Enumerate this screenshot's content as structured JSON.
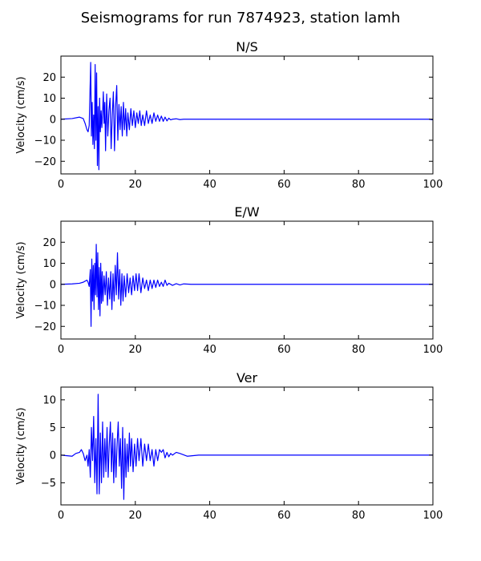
{
  "figure": {
    "title": "Seismograms for run 7874923, station lamh"
  },
  "chart_data": [
    {
      "type": "line",
      "title": "N/S",
      "xlabel": "",
      "ylabel": "Velocity (cm/s)",
      "xlim": [
        0,
        100
      ],
      "ylim": [
        -26,
        30
      ],
      "xticks": [
        0,
        20,
        40,
        60,
        80,
        100
      ],
      "yticks": [
        -20,
        -10,
        0,
        10,
        20
      ],
      "color": "#0000ff",
      "grid": false,
      "x": [
        0,
        3,
        5,
        6,
        6.5,
        7,
        7.3,
        7.6,
        8,
        8.2,
        8.4,
        8.6,
        8.8,
        9.0,
        9.2,
        9.4,
        9.6,
        9.8,
        10.0,
        10.2,
        10.4,
        10.6,
        10.8,
        11.0,
        11.2,
        11.4,
        11.6,
        11.8,
        12.0,
        12.3,
        12.6,
        12.9,
        13.2,
        13.5,
        13.8,
        14.1,
        14.4,
        14.7,
        15.0,
        15.3,
        15.6,
        15.9,
        16.2,
        16.5,
        16.8,
        17.1,
        17.4,
        17.7,
        18.0,
        18.4,
        18.8,
        19.2,
        19.6,
        20.0,
        20.4,
        20.8,
        21.2,
        21.6,
        22.0,
        22.5,
        23.0,
        23.5,
        24.0,
        24.5,
        25.0,
        25.5,
        26.0,
        26.5,
        27.0,
        27.5,
        28.0,
        28.5,
        29.0,
        29.5,
        30.0,
        31,
        32,
        33,
        35,
        38,
        40,
        50,
        60,
        70,
        80,
        90,
        99,
        100
      ],
      "y": [
        0,
        0.3,
        1,
        0.3,
        -2,
        -5,
        -6,
        -3,
        27,
        -8,
        8,
        -12,
        2,
        -14,
        26,
        -10,
        22,
        -22,
        6,
        -24,
        10,
        -6,
        4,
        -4,
        3,
        13,
        -2,
        8,
        -15,
        12,
        -8,
        4,
        10,
        -14,
        2,
        13,
        -15,
        6,
        16,
        -10,
        7,
        -5,
        6,
        -8,
        8,
        -5,
        5,
        -8,
        3,
        -5,
        5,
        -3,
        4,
        -4,
        3,
        -2,
        4,
        -3,
        2,
        -3,
        4,
        -2,
        2,
        -2,
        3,
        -1,
        2,
        -1,
        1.5,
        -1,
        1,
        -0.8,
        0.5,
        -0.3,
        0,
        0.2,
        -0.2,
        0,
        0,
        0,
        0,
        0,
        0,
        0,
        0,
        0,
        0,
        -0.3
      ]
    },
    {
      "type": "line",
      "title": "E/W",
      "xlabel": "",
      "ylabel": "Velocity (cm/s)",
      "xlim": [
        0,
        100
      ],
      "ylim": [
        -26,
        30
      ],
      "xticks": [
        0,
        20,
        40,
        60,
        80,
        100
      ],
      "yticks": [
        -20,
        -10,
        0,
        10,
        20
      ],
      "color": "#0000ff",
      "grid": false,
      "x": [
        0,
        3,
        5,
        6,
        6.5,
        7,
        7.3,
        7.6,
        7.9,
        8.1,
        8.3,
        8.5,
        8.7,
        8.9,
        9.1,
        9.3,
        9.5,
        9.7,
        9.9,
        10.1,
        10.3,
        10.5,
        10.7,
        10.9,
        11.1,
        11.3,
        11.6,
        11.9,
        12.2,
        12.5,
        12.8,
        13.1,
        13.4,
        13.7,
        14.0,
        14.3,
        14.6,
        14.9,
        15.2,
        15.5,
        15.8,
        16.1,
        16.4,
        16.7,
        17.0,
        17.4,
        17.8,
        18.2,
        18.6,
        19.0,
        19.4,
        19.8,
        20.2,
        20.6,
        21.0,
        21.5,
        22.0,
        22.5,
        23.0,
        23.5,
        24.0,
        24.5,
        25.0,
        25.5,
        26.0,
        26.5,
        27.0,
        27.5,
        28.0,
        28.5,
        29.0,
        30.0,
        31,
        32,
        33,
        35,
        40,
        50,
        60,
        70,
        80,
        90,
        100
      ],
      "y": [
        0,
        0.2,
        0.5,
        1,
        1.5,
        2,
        1,
        -1,
        7,
        -20,
        12,
        -8,
        9,
        -12,
        10,
        -5,
        19,
        -6,
        15,
        -12,
        8,
        -15,
        10,
        -9,
        6,
        -8,
        4,
        -5,
        6,
        -10,
        3,
        -7,
        6,
        -12,
        5,
        -8,
        9,
        -5,
        15,
        -7,
        7,
        -10,
        5,
        -8,
        4,
        -6,
        5,
        -4,
        3,
        -5,
        4,
        -3,
        5,
        -3,
        5,
        -4,
        3,
        -2,
        2,
        -3,
        2,
        -2,
        2,
        -1.5,
        2,
        -1,
        1,
        -1,
        2,
        -0.5,
        0.5,
        -0.5,
        0.3,
        -0.3,
        0.2,
        0,
        0,
        0,
        0,
        0,
        0,
        0,
        0
      ]
    },
    {
      "type": "line",
      "title": "Ver",
      "xlabel": "",
      "ylabel": "Velocity (cm/s)",
      "xlim": [
        0,
        100
      ],
      "ylim": [
        -9,
        12.3
      ],
      "xticks": [
        0,
        20,
        40,
        60,
        80,
        100
      ],
      "yticks": [
        -5,
        0,
        5,
        10
      ],
      "color": "#0000ff",
      "grid": false,
      "x": [
        0,
        3,
        4,
        5,
        5.5,
        6,
        6.5,
        7,
        7.3,
        7.6,
        7.9,
        8.2,
        8.5,
        8.8,
        9.1,
        9.4,
        9.7,
        10.0,
        10.3,
        10.6,
        10.9,
        11.2,
        11.5,
        11.8,
        12.1,
        12.4,
        12.7,
        13.0,
        13.3,
        13.6,
        13.9,
        14.2,
        14.5,
        14.8,
        15.1,
        15.4,
        15.7,
        16.0,
        16.3,
        16.6,
        16.9,
        17.2,
        17.5,
        17.8,
        18.1,
        18.4,
        18.7,
        19.0,
        19.4,
        19.8,
        20.2,
        20.6,
        21.0,
        21.5,
        22.0,
        22.5,
        23.0,
        23.5,
        24.0,
        24.5,
        25.0,
        25.5,
        26.0,
        26.5,
        27.0,
        27.5,
        28.0,
        28.5,
        29.0,
        29.5,
        30.0,
        31,
        32,
        34,
        37,
        40,
        50,
        60,
        70,
        80,
        90,
        100
      ],
      "y": [
        0,
        -0.2,
        0.3,
        0.5,
        1,
        0.3,
        -1,
        0,
        -2,
        1,
        -4,
        5,
        -1,
        7,
        -5,
        3,
        -7,
        11,
        -7,
        4,
        -5,
        6,
        -4,
        3,
        -3,
        5,
        -4,
        2,
        6,
        -3,
        4,
        -5,
        3,
        -4,
        2,
        6,
        -2,
        3,
        -6,
        5,
        -8,
        3,
        -4,
        2,
        -3,
        4,
        -2,
        3,
        -3,
        2,
        -2,
        3,
        -1,
        3,
        -2,
        2,
        -1,
        2,
        -1,
        1,
        -2,
        1,
        -1,
        1,
        0.5,
        1,
        -0.5,
        0.5,
        -0.3,
        0.3,
        0,
        0.5,
        0.3,
        -0.2,
        0,
        0,
        0,
        0,
        0,
        0,
        0,
        0
      ]
    }
  ]
}
